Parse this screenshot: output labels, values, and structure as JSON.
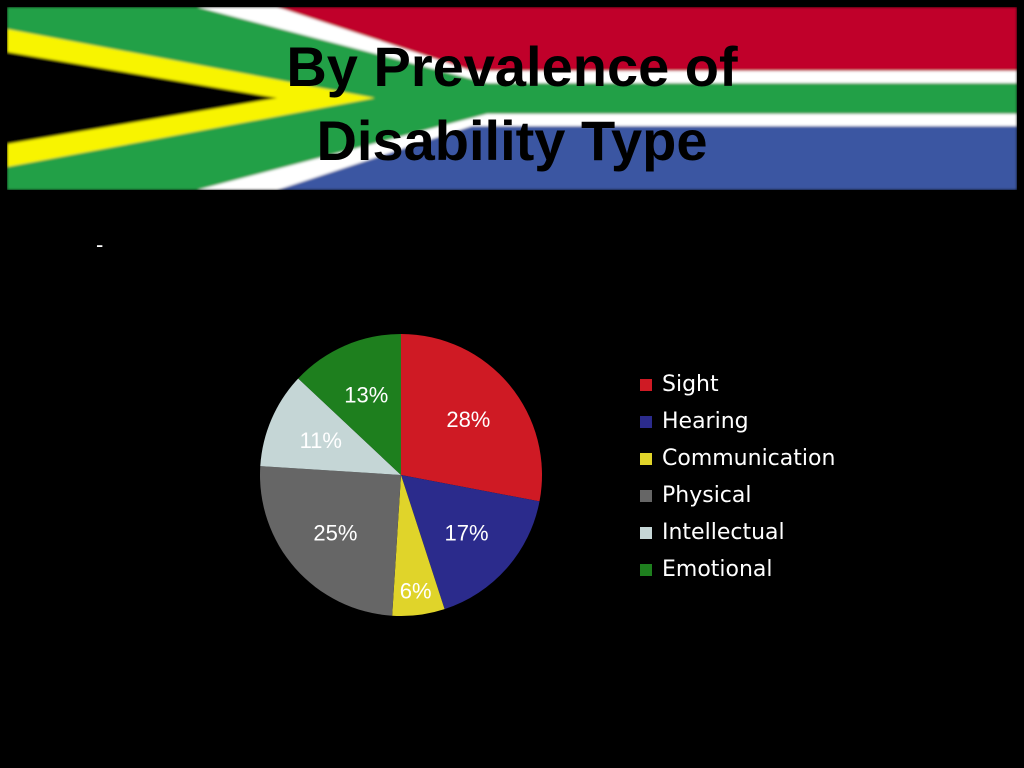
{
  "slide": {
    "title_line1": "By Prevalence of",
    "title_line2": "Disability Type",
    "bullet": "-"
  },
  "flag_colors": {
    "red": "#c0002a",
    "green": "#22a046",
    "blue": "#3a56a2",
    "yellow": "#f8f400",
    "white": "#ffffff",
    "black": "#000000"
  },
  "chart_data": {
    "type": "pie",
    "title": "",
    "legend_position": "right",
    "categories": [
      "Sight",
      "Hearing",
      "Communication",
      "Physical",
      "Intellectual",
      "Emotional"
    ],
    "values": [
      28,
      17,
      6,
      25,
      11,
      13
    ],
    "labels": [
      "28%",
      "17%",
      "6%",
      "25%",
      "11%",
      "13%"
    ],
    "colors": [
      "#cf1a24",
      "#2b2b8c",
      "#e0d42a",
      "#666666",
      "#c5d6d6",
      "#1e7f1e"
    ],
    "start": "12 o'clock",
    "direction": "clockwise"
  }
}
